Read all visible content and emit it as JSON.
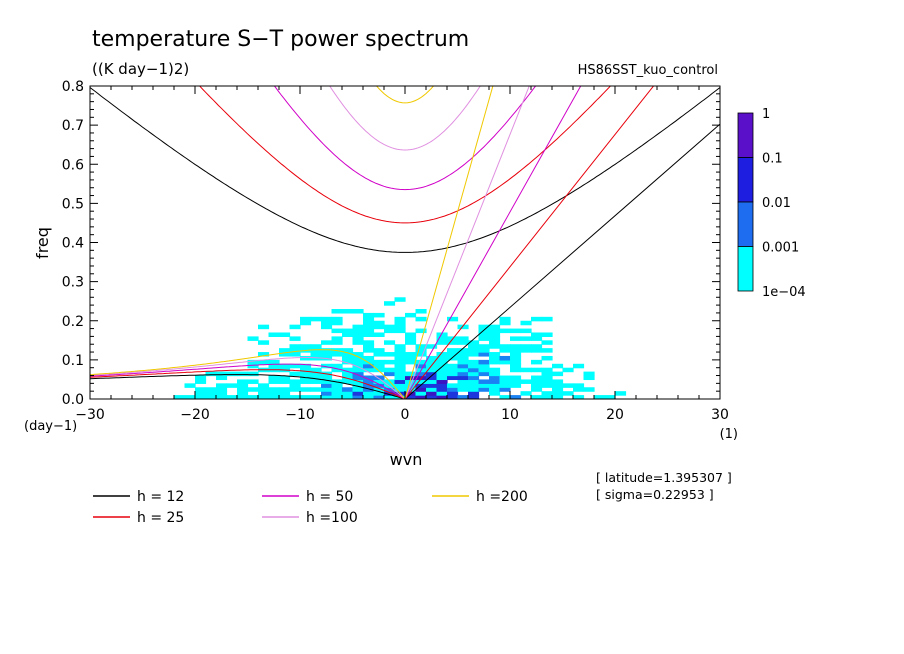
{
  "chart_data": {
    "type": "heatmap",
    "title": "temperature S−T power spectrum",
    "subtitle": "((K day−1)2)",
    "run_label": "HS86SST_kuo_control",
    "xlabel": "wvn",
    "ylabel": "freq",
    "x_unit": "(1)",
    "y_unit": "(day−1)",
    "xlim": [
      -30,
      30
    ],
    "ylim": [
      0,
      0.8
    ],
    "x_ticks": [
      -30,
      -20,
      -10,
      0,
      10,
      20,
      30
    ],
    "x_tick_labels": [
      "−30",
      "−20",
      "−10",
      "0",
      "10",
      "20",
      "30"
    ],
    "y_ticks": [
      0,
      0.1,
      0.2,
      0.3,
      0.4,
      0.5,
      0.6,
      0.7,
      0.8
    ],
    "y_tick_labels": [
      "0.0",
      "0.1",
      "0.2",
      "0.3",
      "0.4",
      "0.5",
      "0.6",
      "0.7",
      "0.8"
    ],
    "colorbar": {
      "labels": [
        "1",
        "0.1",
        "0.01",
        "0.001",
        "1e−04"
      ],
      "colors": [
        "#5a10c8",
        "#1e1ee0",
        "#1e6cf0",
        "#00ffff"
      ]
    },
    "power_colors": {
      "1e-04": "#00ffff",
      "0.001": "#1a82f2",
      "0.01": "#1d35dc",
      "0.1": "#3a14c0"
    },
    "dispersion_curves": [
      {
        "label": "h = 12",
        "h": 12,
        "color": "#000000"
      },
      {
        "label": "h = 25",
        "h": 25,
        "color": "#e8000b"
      },
      {
        "label": "h = 50",
        "h": 50,
        "color": "#d000c8"
      },
      {
        "label": "h =100",
        "h": 100,
        "color": "#e090e0"
      },
      {
        "label": "h =200",
        "h": 200,
        "color": "#f0c800"
      }
    ],
    "info": [
      "[ latitude=1.395307 ]",
      "[ sigma=0.22953 ]"
    ],
    "grid": false,
    "legend_position": "bottom"
  }
}
